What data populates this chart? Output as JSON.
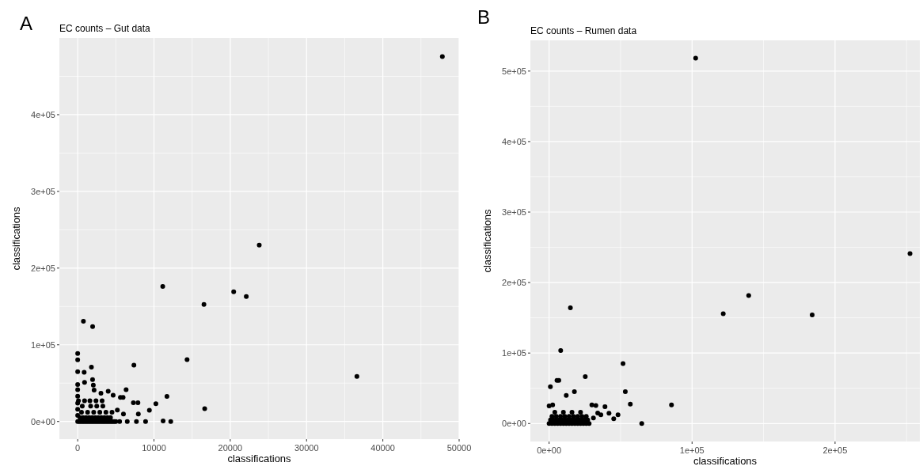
{
  "chart_data": [
    {
      "type": "scatter",
      "title": "EC counts – Gut data",
      "xlabel": "classifications",
      "ylabel": "classifications",
      "annotations": [
        "A"
      ],
      "xlim": [
        -2400,
        50000
      ],
      "ylim": [
        -23000,
        500000
      ],
      "xticks": [
        0,
        10000,
        20000,
        30000,
        40000,
        50000
      ],
      "yticks": [
        {
          "value": 0,
          "label": "0e+00"
        },
        {
          "value": 100000,
          "label": "1e+05"
        },
        {
          "value": 200000,
          "label": "2e+05"
        },
        {
          "value": 300000,
          "label": "3e+05"
        },
        {
          "value": 400000,
          "label": "4e+05"
        }
      ],
      "grid": true,
      "marker": "circle",
      "series": [
        {
          "color": "#000000",
          "x": [
            47800,
            23800,
            11150,
            20450,
            22100,
            16550,
            36600,
            750,
            1960,
            14340,
            7370,
            0,
            0,
            0,
            850,
            1800,
            900,
            1950,
            2050,
            0,
            0,
            2150,
            3050,
            4000,
            4650,
            6350,
            5600,
            5950,
            11700,
            10250,
            7300,
            7900,
            9400,
            16650,
            7950,
            6000,
            5500,
            6500,
            7700,
            8900,
            11200,
            12200,
            0,
            0,
            0,
            0,
            0,
            200,
            400,
            600,
            800,
            1000,
            1200,
            1400,
            1600,
            1800,
            2000,
            2200,
            2400,
            2600,
            2800,
            3000,
            3200,
            3400,
            3600,
            3800,
            4000,
            4200,
            4400,
            4600,
            4800,
            5000,
            300,
            700,
            1100,
            1500,
            1900,
            2300,
            2700,
            3100,
            3500,
            3900,
            4300,
            500,
            1300,
            2100,
            2900,
            3700,
            4500,
            600,
            1700,
            2500,
            3300,
            100,
            900,
            1600,
            2400,
            3200,
            5200
          ],
          "values": [
            475800,
            230000,
            176000,
            169000,
            163000,
            152500,
            58800,
            130600,
            123700,
            80700,
            73500,
            88700,
            80400,
            64900,
            64200,
            71000,
            51000,
            54600,
            47400,
            48100,
            41600,
            40900,
            36800,
            39500,
            34300,
            41600,
            31400,
            31400,
            32800,
            23200,
            24500,
            24500,
            14600,
            16600,
            9800,
            9800,
            0,
            0,
            0,
            0,
            700,
            0,
            0,
            8000,
            16000,
            24000,
            33000,
            0,
            0,
            0,
            0,
            0,
            0,
            0,
            0,
            0,
            0,
            0,
            0,
            0,
            0,
            0,
            0,
            0,
            0,
            0,
            0,
            0,
            0,
            0,
            0,
            0,
            5000,
            5000,
            5000,
            5000,
            5000,
            5000,
            5000,
            5000,
            5000,
            5000,
            5000,
            12000,
            12000,
            12000,
            12000,
            12000,
            12000,
            20000,
            20000,
            20000,
            20000,
            27000,
            27000,
            27000,
            27000,
            27000,
            15000
          ]
        }
      ]
    },
    {
      "type": "scatter",
      "title": "EC counts – Rumen data",
      "xlabel": "classifications",
      "ylabel": "classifications",
      "annotations": [
        "B"
      ],
      "xlim": [
        -13100,
        259300
      ],
      "ylim": [
        -25500,
        543600
      ],
      "xticks": [
        {
          "value": 0,
          "label": "0e+00"
        },
        {
          "value": 100000,
          "label": "1e+05"
        },
        {
          "value": 200000,
          "label": "2e+05"
        }
      ],
      "yticks": [
        {
          "value": 0,
          "label": "0e+00"
        },
        {
          "value": 100000,
          "label": "1e+05"
        },
        {
          "value": 200000,
          "label": "2e+05"
        },
        {
          "value": 300000,
          "label": "3e+05"
        },
        {
          "value": 400000,
          "label": "4e+05"
        },
        {
          "value": 500000,
          "label": "5e+05"
        }
      ],
      "grid": true,
      "marker": "circle",
      "series": [
        {
          "color": "#000000",
          "x": [
            102500,
            252400,
            139600,
            121800,
            184000,
            14900,
            8100,
            51700,
            25300,
            5500,
            6800,
            900,
            12000,
            17700,
            53300,
            56800,
            85600,
            64800,
            48200,
            45200,
            39100,
            41900,
            36200,
            32700,
            29900,
            28000,
            2500,
            0,
            0,
            2000,
            4000,
            6000,
            8000,
            10000,
            12000,
            14000,
            16000,
            18000,
            20000,
            22000,
            24000,
            26000,
            1000,
            3000,
            5000,
            7000,
            9000,
            11000,
            13000,
            15000,
            17000,
            19000,
            21000,
            23000,
            25000,
            27000,
            2000,
            5000,
            8000,
            11000,
            14000,
            17000,
            20000,
            23000,
            26000,
            4000,
            10000,
            16000,
            22000,
            31000,
            34000
          ],
          "values": [
            518300,
            241100,
            181700,
            155900,
            154000,
            164100,
            103500,
            85200,
            66500,
            61300,
            61200,
            52300,
            40000,
            45200,
            45200,
            27600,
            26500,
            0,
            12300,
            6700,
            23900,
            14600,
            12300,
            25500,
            26500,
            0,
            26500,
            25000,
            0,
            0,
            0,
            0,
            0,
            0,
            0,
            0,
            0,
            0,
            0,
            0,
            0,
            0,
            5000,
            5000,
            5000,
            5000,
            5000,
            5000,
            5000,
            5000,
            5000,
            5000,
            5000,
            5000,
            5000,
            5000,
            10000,
            10000,
            10000,
            10000,
            10000,
            10000,
            10000,
            10000,
            10000,
            16000,
            16000,
            16000,
            16000,
            8000,
            15000
          ]
        }
      ]
    }
  ]
}
